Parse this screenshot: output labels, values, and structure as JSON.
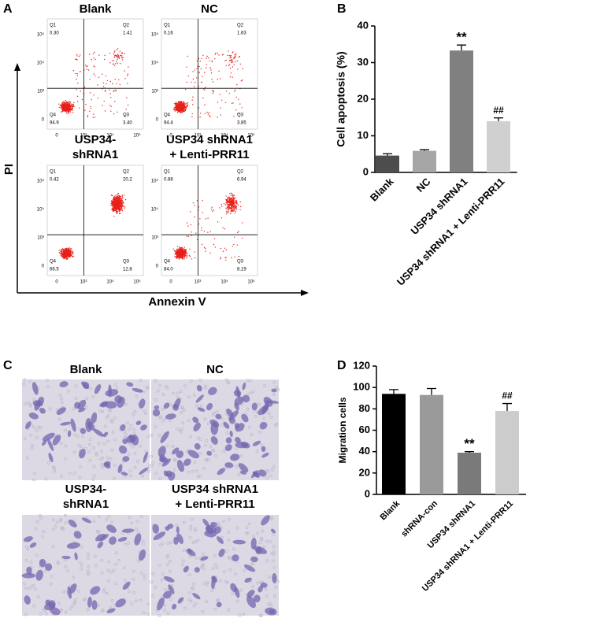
{
  "panel_labels": [
    "A",
    "B",
    "C",
    "D"
  ],
  "flow": {
    "x_label": "Annexin V",
    "y_label": "PI",
    "xticks": [
      "0",
      "10³",
      "10⁴",
      "10⁵"
    ],
    "yticks": [
      "0",
      "10³",
      "10⁴",
      "10⁵"
    ],
    "quadrant_names": [
      "Q1",
      "Q2",
      "Q3",
      "Q4"
    ],
    "plots": [
      {
        "title": [
          "Blank"
        ],
        "quadrants": [
          "0.30",
          "1.41",
          "3.40",
          "94.9"
        ]
      },
      {
        "title": [
          "NC"
        ],
        "quadrants": [
          "0.16",
          "1.63",
          "3.85",
          "94.4"
        ]
      },
      {
        "title": [
          "USP34-",
          "shRNA1"
        ],
        "quadrants": [
          "0.42",
          "20.2",
          "12.8",
          "66.5"
        ]
      },
      {
        "title": [
          "USP34 shRNA1",
          "+ Lenti-PRR11"
        ],
        "quadrants": [
          "0.88",
          "6.94",
          "8.19",
          "84.0"
        ]
      }
    ]
  },
  "migration_images": [
    {
      "title": [
        "Blank"
      ]
    },
    {
      "title": [
        "NC"
      ]
    },
    {
      "title": [
        "USP34-",
        "shRNA1"
      ]
    },
    {
      "title": [
        "USP34 shRNA1",
        "+ Lenti-PRR11"
      ]
    }
  ],
  "chart_data": [
    {
      "type": "bar",
      "ylabel": "Cell apoptosis (%)",
      "categories": [
        "Blank",
        "NC",
        "USP34 shRNA1",
        "USP34 shRNA1 + Lenti-PRR11"
      ],
      "values": [
        4.6,
        5.9,
        33.3,
        14.0
      ],
      "errors": [
        0.5,
        0.3,
        1.5,
        0.9
      ],
      "colors": [
        "#4d4d4d",
        "#a6a6a6",
        "#808080",
        "#d0d0d0"
      ],
      "annotations": [
        null,
        null,
        "**",
        "##"
      ],
      "ylim": [
        0,
        40
      ],
      "yticks": [
        0,
        10,
        20,
        30,
        40
      ]
    },
    {
      "type": "bar",
      "ylabel": "Migration cells",
      "categories": [
        "Blank",
        "shRNA-con",
        "USP34 shRNA1",
        "USP34 shRNA1 + Lenti-PRR11"
      ],
      "values": [
        94,
        93,
        39,
        78
      ],
      "errors": [
        4,
        6,
        1,
        7
      ],
      "colors": [
        "#000000",
        "#9a9a9a",
        "#7a7a7a",
        "#cccccc"
      ],
      "annotations": [
        null,
        null,
        "**",
        "##"
      ],
      "ylim": [
        0,
        120
      ],
      "yticks": [
        0,
        20,
        40,
        60,
        80,
        100,
        120
      ]
    }
  ]
}
